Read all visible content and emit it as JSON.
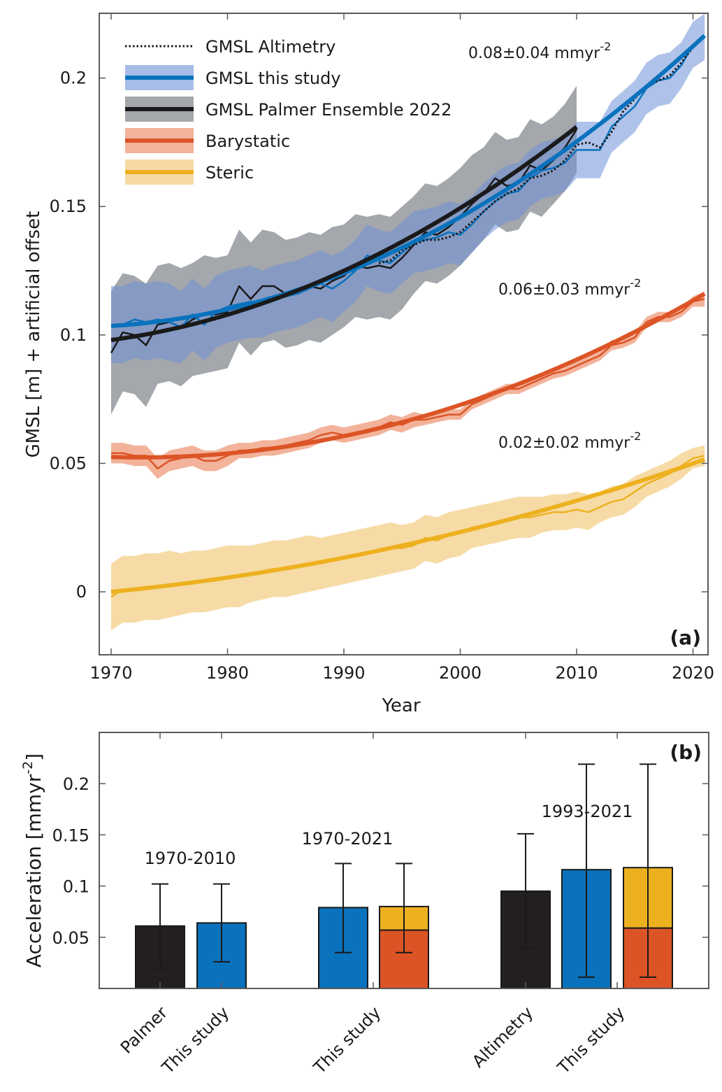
{
  "chart_data": [
    {
      "panel": "(a)",
      "type": "line",
      "xlabel": "Year",
      "ylabel": "GMSL [m] + artificial offset",
      "xlim": [
        1970,
        2022
      ],
      "ylim": [
        -0.025,
        0.228
      ],
      "xticks": [
        1970,
        1980,
        1990,
        2000,
        2010,
        2020
      ],
      "xtick_labels": [
        "1970",
        "1980",
        "1990",
        "2000",
        "2010",
        "2020"
      ],
      "yticks": [
        0,
        0.05,
        0.1,
        0.15,
        0.2
      ],
      "ytick_labels": [
        "0",
        "0.05",
        "0.1",
        "0.15",
        "0.2"
      ],
      "grid": false,
      "legend_position": "top-left",
      "legend": [
        {
          "label": "GMSL Altimetry",
          "style": "dotted",
          "line_color": "#1a1a1a",
          "band_color": null
        },
        {
          "label": "GMSL this study",
          "style": "band",
          "line_color": "#0a72bd",
          "band_color": "#a7bde8"
        },
        {
          "label": "GMSL Palmer Ensemble 2022",
          "style": "band",
          "line_color": "#1a1a1a",
          "band_color": "#a4a7ab"
        },
        {
          "label": "Barystatic",
          "style": "band",
          "line_color": "#dc5426",
          "band_color": "#f2b39a"
        },
        {
          "label": "Steric",
          "style": "band",
          "line_color": "#edb120",
          "band_color": "#f7dba6"
        }
      ],
      "annotations": [
        {
          "text": "0.08±0.04 mmyr",
          "sup": "-2",
          "series": "GMSL this study"
        },
        {
          "text": "0.06±0.03 mmyr",
          "sup": "-2",
          "series": "Barystatic"
        },
        {
          "text": "0.02±0.02 mmyr",
          "sup": "-2",
          "series": "Steric"
        }
      ],
      "series": [
        {
          "name": "GMSL this study",
          "start_year": 1970,
          "values": [
            0.104,
            0.104,
            0.106,
            0.105,
            0.106,
            0.105,
            0.103,
            0.108,
            0.104,
            0.109,
            0.111,
            0.112,
            0.113,
            0.112,
            0.114,
            0.115,
            0.116,
            0.118,
            0.12,
            0.118,
            0.121,
            0.125,
            0.131,
            0.129,
            0.128,
            0.132,
            0.136,
            0.137,
            0.138,
            0.14,
            0.139,
            0.143,
            0.148,
            0.152,
            0.155,
            0.156,
            0.161,
            0.164,
            0.165,
            0.167,
            0.172,
            0.172,
            0.172,
            0.181,
            0.185,
            0.189,
            0.196,
            0.199,
            0.2,
            0.205,
            0.213,
            0.216
          ],
          "fit": [
            0.104,
            0.1043,
            0.1048,
            0.1055,
            0.1064,
            0.1075,
            0.1088,
            0.1103,
            0.112,
            0.1139,
            0.116,
            0.1183,
            0.1208,
            0.1235,
            0.1264,
            0.1295,
            0.1328,
            0.1363,
            0.14,
            0.1439,
            0.148
          ],
          "uncertainty": [
            0.015,
            0.015,
            0.015,
            0.015,
            0.015,
            0.015,
            0.014,
            0.014,
            0.014,
            0.014,
            0.014,
            0.014,
            0.014,
            0.013,
            0.013,
            0.013,
            0.013,
            0.013,
            0.013,
            0.013,
            0.012,
            0.012,
            0.012,
            0.012,
            0.012,
            0.012,
            0.012,
            0.012,
            0.012,
            0.012,
            0.012,
            0.011,
            0.011,
            0.011,
            0.011,
            0.011,
            0.011,
            0.011,
            0.011,
            0.011,
            0.011,
            0.011,
            0.011,
            0.01,
            0.01,
            0.01,
            0.01,
            0.01,
            0.01,
            0.009,
            0.009,
            0.009
          ]
        },
        {
          "name": "GMSL Palmer Ensemble 2022",
          "start_year": 1970,
          "end_year": 2010,
          "values": [
            0.093,
            0.101,
            0.1,
            0.096,
            0.104,
            0.105,
            0.103,
            0.106,
            0.108,
            0.108,
            0.109,
            0.119,
            0.114,
            0.119,
            0.119,
            0.116,
            0.117,
            0.119,
            0.118,
            0.121,
            0.123,
            0.127,
            0.126,
            0.127,
            0.126,
            0.13,
            0.135,
            0.14,
            0.139,
            0.142,
            0.146,
            0.151,
            0.155,
            0.161,
            0.158,
            0.159,
            0.166,
            0.164,
            0.168,
            0.173,
            0.18
          ],
          "uncertainty": [
            0.024,
            0.023,
            0.023,
            0.024,
            0.023,
            0.023,
            0.023,
            0.022,
            0.023,
            0.022,
            0.022,
            0.022,
            0.022,
            0.022,
            0.021,
            0.021,
            0.021,
            0.021,
            0.021,
            0.021,
            0.02,
            0.02,
            0.02,
            0.02,
            0.02,
            0.02,
            0.019,
            0.019,
            0.019,
            0.019,
            0.019,
            0.019,
            0.018,
            0.018,
            0.018,
            0.018,
            0.018,
            0.018,
            0.017,
            0.017,
            0.017
          ]
        },
        {
          "name": "GMSL Altimetry",
          "start_year": 1993,
          "values": [
            0.128,
            0.129,
            0.133,
            0.135,
            0.137,
            0.137,
            0.138,
            0.14,
            0.144,
            0.148,
            0.152,
            0.155,
            0.157,
            0.161,
            0.162,
            0.164,
            0.168,
            0.174,
            0.175,
            0.173,
            0.179,
            0.187,
            0.192,
            0.197,
            0.199,
            0.201,
            0.206,
            0.212,
            0.217
          ]
        },
        {
          "name": "Barystatic",
          "start_year": 1970,
          "values": [
            0.054,
            0.054,
            0.053,
            0.053,
            0.048,
            0.051,
            0.052,
            0.053,
            0.051,
            0.051,
            0.053,
            0.055,
            0.055,
            0.056,
            0.056,
            0.057,
            0.058,
            0.059,
            0.061,
            0.062,
            0.061,
            0.062,
            0.063,
            0.064,
            0.066,
            0.065,
            0.067,
            0.067,
            0.068,
            0.069,
            0.069,
            0.073,
            0.075,
            0.077,
            0.079,
            0.079,
            0.081,
            0.083,
            0.085,
            0.086,
            0.088,
            0.09,
            0.092,
            0.096,
            0.097,
            0.099,
            0.105,
            0.107,
            0.107,
            0.109,
            0.113,
            0.114
          ],
          "uncertainty": [
            0.004,
            0.004,
            0.004,
            0.004,
            0.004,
            0.004,
            0.004,
            0.004,
            0.004,
            0.004,
            0.004,
            0.003,
            0.003,
            0.003,
            0.003,
            0.003,
            0.003,
            0.003,
            0.003,
            0.003,
            0.003,
            0.003,
            0.003,
            0.003,
            0.003,
            0.003,
            0.003,
            0.002,
            0.002,
            0.002,
            0.002,
            0.002,
            0.002,
            0.002,
            0.002,
            0.002,
            0.002,
            0.002,
            0.002,
            0.002,
            0.002,
            0.002,
            0.002,
            0.002,
            0.002,
            0.002,
            0.002,
            0.002,
            0.002,
            0.002,
            0.002,
            0.003
          ]
        },
        {
          "name": "Steric",
          "start_year": 1970,
          "values": [
            -0.002,
            0.001,
            0.001,
            0.002,
            0.002,
            0.003,
            0.003,
            0.004,
            0.004,
            0.005,
            0.006,
            0.006,
            0.007,
            0.008,
            0.009,
            0.009,
            0.01,
            0.011,
            0.011,
            0.012,
            0.013,
            0.014,
            0.015,
            0.016,
            0.017,
            0.017,
            0.018,
            0.021,
            0.02,
            0.022,
            0.023,
            0.025,
            0.026,
            0.027,
            0.028,
            0.029,
            0.029,
            0.03,
            0.031,
            0.031,
            0.032,
            0.031,
            0.033,
            0.035,
            0.036,
            0.039,
            0.042,
            0.044,
            0.046,
            0.049,
            0.052,
            0.053
          ],
          "uncertainty": [
            0.013,
            0.013,
            0.013,
            0.013,
            0.013,
            0.013,
            0.012,
            0.012,
            0.012,
            0.012,
            0.012,
            0.012,
            0.011,
            0.011,
            0.011,
            0.011,
            0.011,
            0.011,
            0.01,
            0.01,
            0.01,
            0.01,
            0.01,
            0.01,
            0.01,
            0.009,
            0.009,
            0.009,
            0.009,
            0.009,
            0.009,
            0.008,
            0.008,
            0.008,
            0.008,
            0.008,
            0.008,
            0.007,
            0.007,
            0.007,
            0.007,
            0.007,
            0.006,
            0.006,
            0.006,
            0.006,
            0.005,
            0.005,
            0.005,
            0.005,
            0.004,
            0.004
          ]
        }
      ],
      "fits": [
        {
          "name": "GMSL this study fit",
          "start_year": 1970,
          "end_year": 2021,
          "y_start": 0.1035,
          "y_end": 0.2165,
          "shape": "quadratic",
          "y_mid_1995": 0.134
        },
        {
          "name": "GMSL Palmer Ensemble 2022 fit",
          "start_year": 1970,
          "end_year": 2010,
          "y_start": 0.098,
          "y_end": 0.181,
          "shape": "quadratic",
          "y_mid_1990": 0.125
        },
        {
          "name": "Barystatic fit",
          "start_year": 1970,
          "end_year": 2021,
          "y_start": 0.0525,
          "y_end": 0.116,
          "shape": "quadratic",
          "y_mid_1995": 0.066
        },
        {
          "name": "Steric fit",
          "start_year": 1970,
          "end_year": 2021,
          "y_start": 0.0,
          "y_end": 0.0515,
          "shape": "quadratic",
          "y_mid_1995": 0.018
        }
      ],
      "panel_label": "(a)"
    },
    {
      "panel": "(b)",
      "type": "bar",
      "ylabel": "Acceleration [mmyr",
      "ylabel_sup": "-2",
      "ylabel_close": "]",
      "ylim": [
        0,
        0.25
      ],
      "yticks": [
        0.05,
        0.1,
        0.15,
        0.2
      ],
      "ytick_labels": [
        "0.05",
        "0.1",
        "0.15",
        "0.2"
      ],
      "grid": false,
      "groups": [
        {
          "period": "1970-2010",
          "bars": [
            {
              "label": "Palmer",
              "stacked": false,
              "value": 0.061,
              "color": "#231f20",
              "err_low": 0.02,
              "err_high": 0.102
            },
            {
              "label": "This study",
              "stacked": false,
              "value": 0.064,
              "color": "#0a72bd",
              "err_low": 0.026,
              "err_high": 0.102
            }
          ]
        },
        {
          "period": "1970-2021",
          "bars": [
            {
              "label": "",
              "stacked": false,
              "value": 0.079,
              "color": "#0a72bd",
              "err_low": 0.035,
              "err_high": 0.122
            },
            {
              "label": "This study",
              "stacked": true,
              "segments": [
                {
                  "name": "Barystatic",
                  "value": 0.057,
                  "color": "#dc5426"
                },
                {
                  "name": "Steric",
                  "value": 0.023,
                  "color": "#edb120"
                }
              ],
              "value": 0.08,
              "err_low": 0.035,
              "err_high": 0.122
            }
          ]
        },
        {
          "period": "1993-2021",
          "bars": [
            {
              "label": "Altimetry",
              "stacked": false,
              "value": 0.095,
              "color": "#231f20",
              "err_low": 0.04,
              "err_high": 0.151
            },
            {
              "label": "",
              "stacked": false,
              "value": 0.116,
              "color": "#0a72bd",
              "err_low": 0.011,
              "err_high": 0.219
            },
            {
              "label": "This study",
              "stacked": true,
              "segments": [
                {
                  "name": "Barystatic",
                  "value": 0.059,
                  "color": "#dc5426"
                },
                {
                  "name": "Steric",
                  "value": 0.059,
                  "color": "#edb120"
                }
              ],
              "value": 0.118,
              "err_low": 0.011,
              "err_high": 0.219
            }
          ]
        }
      ],
      "xtick_labels": [
        "Palmer",
        "This study",
        "This study",
        "Altimetry",
        "This study"
      ],
      "panel_label": "(b)"
    }
  ]
}
